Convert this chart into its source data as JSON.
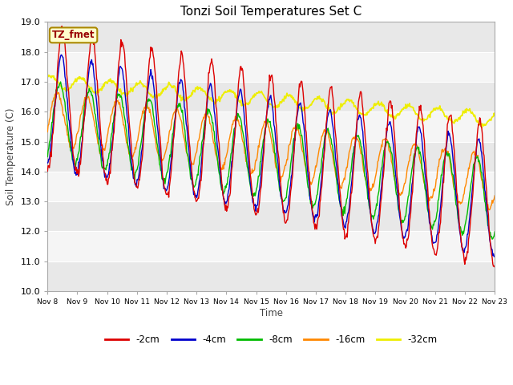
{
  "title": "Tonzi Soil Temperatures Set C",
  "ylabel": "Soil Temperature (C)",
  "xlabel": "Time",
  "ylim": [
    10.0,
    19.0
  ],
  "yticks": [
    10.0,
    11.0,
    12.0,
    13.0,
    14.0,
    15.0,
    16.0,
    17.0,
    18.0,
    19.0
  ],
  "xtick_labels": [
    "Nov 8",
    "Nov 9",
    "Nov 10",
    "Nov 11",
    "Nov 12",
    "Nov 13",
    "Nov 14",
    "Nov 15",
    "Nov 16",
    "Nov 17",
    "Nov 18",
    "Nov 19",
    "Nov 20",
    "Nov 21",
    "Nov 22",
    "Nov 23"
  ],
  "colors": {
    "-2cm": "#dd0000",
    "-4cm": "#0000cc",
    "-8cm": "#00bb00",
    "-16cm": "#ff8800",
    "-32cm": "#eeee00"
  },
  "legend_labels": [
    "-2cm",
    "-4cm",
    "-8cm",
    "-16cm",
    "-32cm"
  ],
  "annotation_text": "TZ_fmet",
  "annotation_color": "#990000",
  "annotation_bg": "#ffffcc",
  "annotation_border": "#aa8800",
  "linewidth": 1.0,
  "n_points": 720,
  "fig_bg": "#ffffff",
  "plot_bg": "#ffffff",
  "band_color_dark": "#e8e8e8",
  "band_color_light": "#f5f5f5"
}
